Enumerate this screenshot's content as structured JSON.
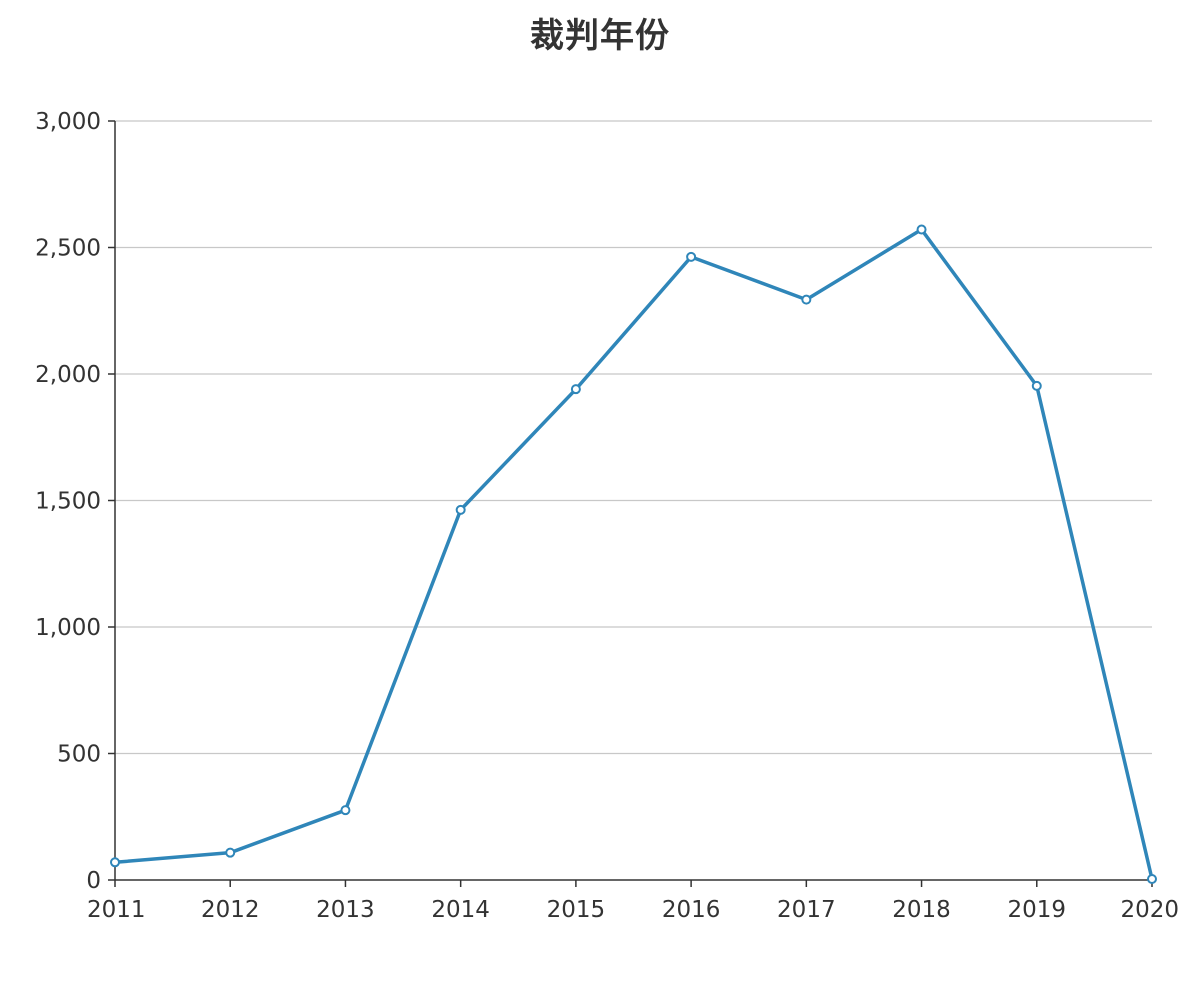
{
  "chart_data": {
    "type": "line",
    "title": "裁判年份",
    "xlabel": "",
    "ylabel": "",
    "categories": [
      "2011",
      "2012",
      "2013",
      "2014",
      "2015",
      "2016",
      "2017",
      "2018",
      "2019",
      "2020"
    ],
    "series": [
      {
        "values": [
          70,
          108,
          276,
          1463,
          1940,
          2463,
          2294,
          2571,
          1953,
          4
        ]
      }
    ],
    "ylim": [
      0,
      3000
    ],
    "yticks": [
      0,
      500,
      1000,
      1500,
      2000,
      2500,
      3000
    ],
    "ytick_labels": [
      "0",
      "500",
      "1,000",
      "1,500",
      "2,000",
      "2,500",
      "3,000"
    ],
    "grid": true,
    "legend": "none",
    "colors": {
      "line": "#2f86b9",
      "grid": "#c8c8c8",
      "axis": "#333333",
      "marker_fill": "#ffffff"
    }
  }
}
